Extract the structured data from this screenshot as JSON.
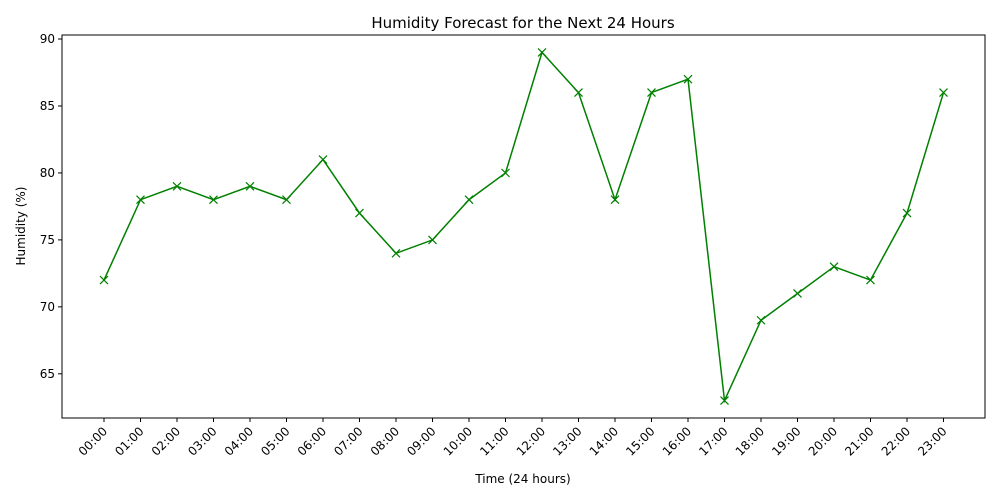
{
  "chart_data": {
    "type": "line",
    "title": "Humidity Forecast for the Next 24 Hours",
    "xlabel": "Time (24 hours)",
    "ylabel": "Humidity (%)",
    "categories": [
      "00:00",
      "01:00",
      "02:00",
      "03:00",
      "04:00",
      "05:00",
      "06:00",
      "07:00",
      "08:00",
      "09:00",
      "10:00",
      "11:00",
      "12:00",
      "13:00",
      "14:00",
      "15:00",
      "16:00",
      "17:00",
      "18:00",
      "19:00",
      "20:00",
      "21:00",
      "22:00",
      "23:00"
    ],
    "values": [
      72,
      78,
      79,
      78,
      79,
      78,
      81,
      77,
      74,
      75,
      78,
      80,
      89,
      86,
      78,
      86,
      87,
      63,
      69,
      71,
      73,
      72,
      77,
      86
    ],
    "yticks": [
      65,
      70,
      75,
      80,
      85,
      90
    ],
    "ylim": [
      61.7,
      90.3
    ],
    "marker": "x",
    "color": "#008000",
    "grid": false
  }
}
